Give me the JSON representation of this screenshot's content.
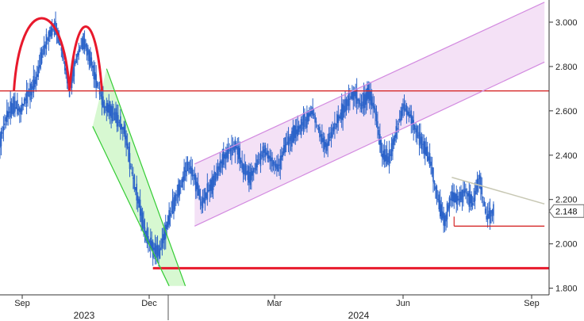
{
  "chart_data": {
    "type": "candlestick",
    "title": "",
    "xlabel": "",
    "ylabel": "",
    "ylim": [
      1.77,
      3.1
    ],
    "y_ticks": [
      "1.800",
      "2.000",
      "2.200",
      "2.400",
      "2.600",
      "2.800",
      "3.000"
    ],
    "x_ticks": [
      "Sep",
      "Dec",
      "Mar",
      "Jun",
      "Sep"
    ],
    "x_year_labels": [
      "2023",
      "2024"
    ],
    "last_value": "2.148",
    "grid": false,
    "legend": "none",
    "series": [
      {
        "points": [
          [
            0,
            2.46
          ],
          [
            6,
            2.58
          ],
          [
            12,
            2.62
          ],
          [
            18,
            2.6
          ],
          [
            24,
            2.68
          ],
          [
            30,
            2.72
          ],
          [
            36,
            2.84
          ],
          [
            42,
            2.94
          ],
          [
            48,
            2.98
          ],
          [
            54,
            2.86
          ],
          [
            60,
            2.7
          ],
          [
            66,
            2.84
          ],
          [
            72,
            2.92
          ],
          [
            78,
            2.84
          ],
          [
            84,
            2.72
          ],
          [
            90,
            2.62
          ],
          [
            96,
            2.6
          ],
          [
            102,
            2.56
          ],
          [
            108,
            2.5
          ],
          [
            114,
            2.32
          ],
          [
            120,
            2.18
          ],
          [
            126,
            2.04
          ],
          [
            132,
            1.98
          ],
          [
            138,
            1.96
          ],
          [
            144,
            2.08
          ],
          [
            150,
            2.18
          ],
          [
            156,
            2.26
          ],
          [
            162,
            2.36
          ],
          [
            168,
            2.3
          ],
          [
            174,
            2.18
          ],
          [
            180,
            2.24
          ],
          [
            186,
            2.3
          ],
          [
            192,
            2.38
          ],
          [
            198,
            2.42
          ],
          [
            204,
            2.44
          ],
          [
            210,
            2.34
          ],
          [
            216,
            2.3
          ],
          [
            222,
            2.36
          ],
          [
            228,
            2.42
          ],
          [
            234,
            2.38
          ],
          [
            240,
            2.34
          ],
          [
            246,
            2.44
          ],
          [
            252,
            2.48
          ],
          [
            258,
            2.52
          ],
          [
            264,
            2.56
          ],
          [
            270,
            2.6
          ],
          [
            276,
            2.5
          ],
          [
            282,
            2.44
          ],
          [
            288,
            2.52
          ],
          [
            294,
            2.58
          ],
          [
            300,
            2.64
          ],
          [
            306,
            2.68
          ],
          [
            312,
            2.62
          ],
          [
            318,
            2.68
          ],
          [
            324,
            2.6
          ],
          [
            330,
            2.4
          ],
          [
            336,
            2.38
          ],
          [
            342,
            2.5
          ],
          [
            348,
            2.62
          ],
          [
            354,
            2.58
          ],
          [
            360,
            2.5
          ],
          [
            366,
            2.44
          ],
          [
            372,
            2.36
          ],
          [
            378,
            2.2
          ],
          [
            384,
            2.1
          ],
          [
            390,
            2.22
          ],
          [
            396,
            2.2
          ],
          [
            402,
            2.24
          ],
          [
            408,
            2.18
          ],
          [
            414,
            2.3
          ],
          [
            420,
            2.12
          ],
          [
            426,
            2.148
          ]
        ]
      }
    ],
    "annotations": [
      {
        "kind": "double-top-arc",
        "color": "#e8192c",
        "points": [
          [
            12,
            2.69
          ],
          [
            36,
            3.02
          ],
          [
            60,
            2.69
          ]
        ]
      },
      {
        "kind": "double-top-arc",
        "color": "#e8192c",
        "points": [
          [
            60,
            2.69
          ],
          [
            72,
            2.97
          ],
          [
            88,
            2.69
          ]
        ]
      },
      {
        "kind": "horizontal-line",
        "color": "#d62b2b",
        "y": 2.69
      },
      {
        "kind": "horizontal-line",
        "color": "#e8192c",
        "y": 1.89
      },
      {
        "kind": "channel",
        "color": "#33cc33",
        "fill": "#c9f5c2",
        "upper": [
          [
            92,
            2.79
          ],
          [
            160,
            1.81
          ]
        ],
        "lower": [
          [
            80,
            2.53
          ],
          [
            146,
            1.81
          ]
        ]
      },
      {
        "kind": "channel",
        "color": "#d38be0",
        "fill": "#f0d7f3",
        "upper": [
          [
            168,
            2.36
          ],
          [
            470,
            3.09
          ]
        ],
        "lower": [
          [
            168,
            2.08
          ],
          [
            470,
            2.82
          ]
        ]
      },
      {
        "kind": "trendline",
        "color": "#c8c8b4",
        "points": [
          [
            390,
            2.3
          ],
          [
            470,
            2.18
          ]
        ]
      },
      {
        "kind": "horizontal-segment",
        "color": "#d62b2b",
        "y": 2.08,
        "x": [
          392,
          470
        ]
      }
    ]
  }
}
